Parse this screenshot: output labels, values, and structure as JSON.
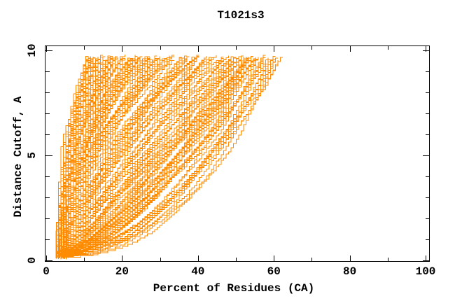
{
  "page": {
    "background": "#FFFFFF"
  },
  "chart_data": {
    "type": "line",
    "title": "T1021s3",
    "xlabel": "Percent of Residues (CA)",
    "ylabel": "Distance Cutoff, A",
    "xlim": [
      0,
      101
    ],
    "ylim": [
      0,
      10.25
    ],
    "x_ticks_major": [
      0,
      20,
      40,
      60,
      80,
      100
    ],
    "x_ticks_minor": [
      10,
      30,
      50,
      70,
      90
    ],
    "y_ticks_major": [
      0,
      5,
      10
    ],
    "y_ticks_minor": [
      1,
      2,
      3,
      4,
      6,
      7,
      8,
      9
    ],
    "grid": false,
    "legend": "none",
    "style": {
      "curve_color": "#FF8C00",
      "axis_color": "#000000",
      "background": "#FFFFFF",
      "curve_width": 1
    },
    "series_description": "Dense bundle of ~180 unlabeled model-accuracy staircase curves: percent of CA residues superimposable within each distance cutoff",
    "envelope": {
      "cutoff": [
        0.3,
        1.0,
        2.0,
        3.0,
        4.0,
        5.0,
        6.0,
        7.0,
        8.0,
        9.0,
        9.8
      ],
      "percent_min": [
        2.8,
        3.5,
        4.2,
        4.8,
        5.2,
        5.6,
        6.2,
        7.0,
        8.2,
        9.8,
        11.0
      ],
      "percent_max": [
        12.0,
        25.0,
        36.0,
        44.0,
        50.0,
        55.0,
        58.0,
        60.0,
        61.5,
        62.5,
        63.0
      ]
    },
    "generator": {
      "seed": 1021,
      "n_curves": 180,
      "start_percent": [
        2.6,
        5.6
      ],
      "final_percent": [
        11,
        63
      ],
      "final_skew": 1.6,
      "exponent_range": [
        0.38,
        2.4
      ],
      "exponent_jitter": 0.4,
      "cutoff_start": [
        0.05,
        0.35
      ],
      "cutoff_end": [
        9.55,
        9.8
      ],
      "x_quantum": 0.65,
      "y_step": 0.1,
      "wobble_amp": 0.45,
      "wobble_freq": 1.3
    }
  }
}
